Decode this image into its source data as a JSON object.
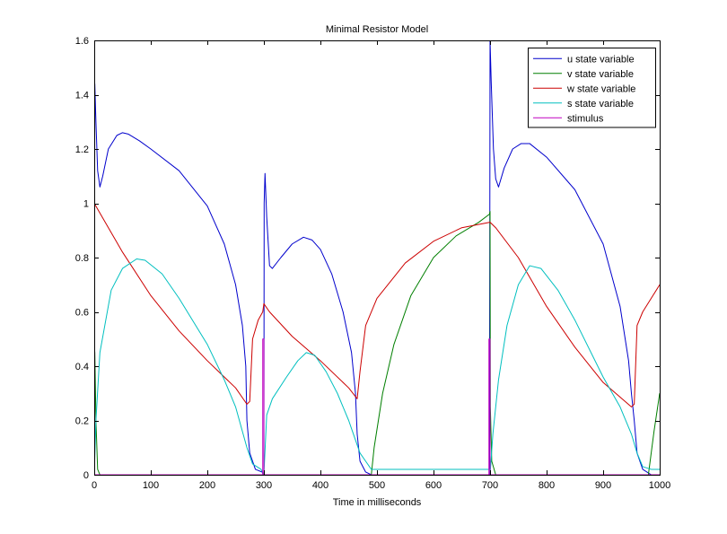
{
  "chart_data": {
    "type": "line",
    "title": "Minimal Resistor Model",
    "xlabel": "Time in milliseconds",
    "ylabel": "",
    "xlim": [
      0,
      1000
    ],
    "ylim": [
      0,
      1.6
    ],
    "xticks": [
      "0",
      "100",
      "200",
      "300",
      "400",
      "500",
      "600",
      "700",
      "800",
      "900",
      "1000"
    ],
    "yticks": [
      "0",
      "0.2",
      "0.4",
      "0.6",
      "0.8",
      "1",
      "1.2",
      "1.4",
      "1.6"
    ],
    "grid": false,
    "legend_position": "top-right",
    "series": [
      {
        "name": "u state variable",
        "color": "#0000cc",
        "points": [
          [
            0,
            0
          ],
          [
            1,
            1.44
          ],
          [
            3,
            1.3
          ],
          [
            6,
            1.12
          ],
          [
            10,
            1.06
          ],
          [
            15,
            1.1
          ],
          [
            25,
            1.2
          ],
          [
            40,
            1.25
          ],
          [
            50,
            1.26
          ],
          [
            60,
            1.255
          ],
          [
            80,
            1.23
          ],
          [
            100,
            1.2
          ],
          [
            150,
            1.12
          ],
          [
            200,
            0.99
          ],
          [
            230,
            0.85
          ],
          [
            250,
            0.7
          ],
          [
            262,
            0.55
          ],
          [
            268,
            0.4
          ],
          [
            270,
            0.2
          ],
          [
            275,
            0.08
          ],
          [
            285,
            0.02
          ],
          [
            297,
            0.01
          ],
          [
            299,
            0.0
          ],
          [
            300,
            0.0
          ],
          [
            300.5,
            1.0
          ],
          [
            302,
            1.11
          ],
          [
            305,
            0.95
          ],
          [
            310,
            0.77
          ],
          [
            315,
            0.76
          ],
          [
            330,
            0.8
          ],
          [
            350,
            0.85
          ],
          [
            370,
            0.875
          ],
          [
            385,
            0.865
          ],
          [
            400,
            0.83
          ],
          [
            420,
            0.74
          ],
          [
            440,
            0.6
          ],
          [
            455,
            0.45
          ],
          [
            462,
            0.3
          ],
          [
            465,
            0.15
          ],
          [
            470,
            0.05
          ],
          [
            480,
            0.01
          ],
          [
            490,
            0.0
          ],
          [
            699,
            0.0
          ],
          [
            700,
            1.6
          ],
          [
            702,
            1.45
          ],
          [
            706,
            1.2
          ],
          [
            710,
            1.09
          ],
          [
            715,
            1.06
          ],
          [
            725,
            1.13
          ],
          [
            740,
            1.2
          ],
          [
            755,
            1.22
          ],
          [
            770,
            1.22
          ],
          [
            800,
            1.17
          ],
          [
            850,
            1.05
          ],
          [
            900,
            0.85
          ],
          [
            930,
            0.62
          ],
          [
            945,
            0.42
          ],
          [
            950,
            0.3
          ],
          [
            955,
            0.2
          ],
          [
            960,
            0.08
          ],
          [
            970,
            0.02
          ],
          [
            985,
            0.0
          ],
          [
            1000,
            0.0
          ]
        ]
      },
      {
        "name": "v state variable",
        "color": "#007f00",
        "points": [
          [
            0,
            0.48
          ],
          [
            1,
            0.45
          ],
          [
            3,
            0.2
          ],
          [
            6,
            0.02
          ],
          [
            10,
            0.0
          ],
          [
            50,
            0.0
          ],
          [
            300,
            0.0
          ],
          [
            350,
            0.0
          ],
          [
            490,
            0.0
          ],
          [
            495,
            0.1
          ],
          [
            510,
            0.3
          ],
          [
            530,
            0.48
          ],
          [
            560,
            0.66
          ],
          [
            600,
            0.8
          ],
          [
            640,
            0.88
          ],
          [
            680,
            0.93
          ],
          [
            699,
            0.96
          ],
          [
            700,
            0.97
          ],
          [
            700.5,
            0.25
          ],
          [
            703,
            0.05
          ],
          [
            710,
            0.0
          ],
          [
            980,
            0.0
          ],
          [
            990,
            0.16
          ],
          [
            1000,
            0.3
          ]
        ]
      },
      {
        "name": "w state variable",
        "color": "#cc0000",
        "points": [
          [
            0,
            1.0
          ],
          [
            50,
            0.82
          ],
          [
            100,
            0.66
          ],
          [
            150,
            0.53
          ],
          [
            200,
            0.42
          ],
          [
            250,
            0.32
          ],
          [
            270,
            0.26
          ],
          [
            275,
            0.27
          ],
          [
            280,
            0.5
          ],
          [
            290,
            0.57
          ],
          [
            298,
            0.6
          ],
          [
            300,
            0.63
          ],
          [
            310,
            0.6
          ],
          [
            350,
            0.51
          ],
          [
            400,
            0.42
          ],
          [
            450,
            0.32
          ],
          [
            465,
            0.28
          ],
          [
            470,
            0.38
          ],
          [
            480,
            0.55
          ],
          [
            500,
            0.65
          ],
          [
            550,
            0.78
          ],
          [
            600,
            0.86
          ],
          [
            650,
            0.91
          ],
          [
            700,
            0.93
          ],
          [
            710,
            0.91
          ],
          [
            750,
            0.8
          ],
          [
            800,
            0.62
          ],
          [
            850,
            0.47
          ],
          [
            900,
            0.34
          ],
          [
            950,
            0.25
          ],
          [
            955,
            0.26
          ],
          [
            960,
            0.55
          ],
          [
            970,
            0.6
          ],
          [
            985,
            0.65
          ],
          [
            1000,
            0.7
          ]
        ]
      },
      {
        "name": "s state variable",
        "color": "#00bfbf",
        "points": [
          [
            0,
            0.0
          ],
          [
            3,
            0.2
          ],
          [
            10,
            0.45
          ],
          [
            30,
            0.68
          ],
          [
            50,
            0.76
          ],
          [
            75,
            0.795
          ],
          [
            90,
            0.79
          ],
          [
            120,
            0.74
          ],
          [
            150,
            0.65
          ],
          [
            200,
            0.48
          ],
          [
            230,
            0.35
          ],
          [
            250,
            0.25
          ],
          [
            262,
            0.16
          ],
          [
            270,
            0.1
          ],
          [
            280,
            0.04
          ],
          [
            295,
            0.02
          ],
          [
            300,
            0.0
          ],
          [
            305,
            0.22
          ],
          [
            315,
            0.28
          ],
          [
            340,
            0.36
          ],
          [
            360,
            0.42
          ],
          [
            375,
            0.45
          ],
          [
            390,
            0.44
          ],
          [
            410,
            0.38
          ],
          [
            430,
            0.3
          ],
          [
            450,
            0.2
          ],
          [
            460,
            0.14
          ],
          [
            470,
            0.08
          ],
          [
            480,
            0.05
          ],
          [
            490,
            0.02
          ],
          [
            699,
            0.02
          ],
          [
            700,
            0.0
          ],
          [
            705,
            0.15
          ],
          [
            715,
            0.35
          ],
          [
            730,
            0.55
          ],
          [
            750,
            0.7
          ],
          [
            770,
            0.77
          ],
          [
            790,
            0.76
          ],
          [
            820,
            0.68
          ],
          [
            850,
            0.57
          ],
          [
            900,
            0.36
          ],
          [
            930,
            0.25
          ],
          [
            950,
            0.15
          ],
          [
            960,
            0.08
          ],
          [
            970,
            0.03
          ],
          [
            985,
            0.02
          ],
          [
            1000,
            0.02
          ]
        ]
      },
      {
        "name": "stimulus",
        "color": "#bf00bf",
        "points": [
          [
            0,
            0
          ],
          [
            298,
            0
          ],
          [
            298,
            0.5
          ],
          [
            300,
            0.5
          ],
          [
            300,
            0
          ],
          [
            698,
            0
          ],
          [
            698,
            0.5
          ],
          [
            700,
            0.5
          ],
          [
            700,
            0
          ],
          [
            1000,
            0
          ]
        ]
      }
    ]
  }
}
